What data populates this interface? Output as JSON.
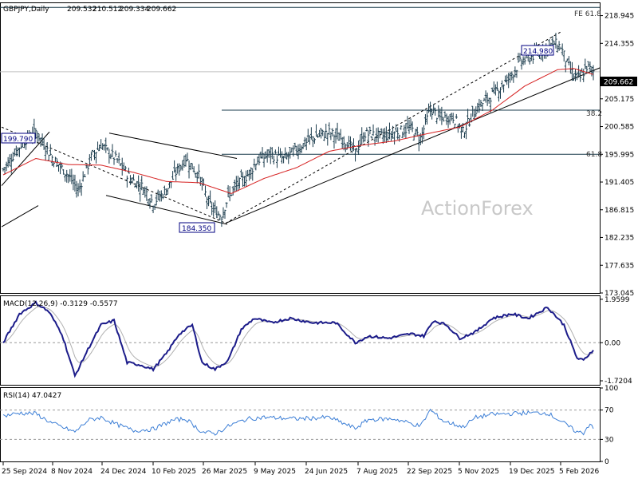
{
  "chart_data": [
    {
      "type": "candlestick",
      "title": "GBPJPY,Daily",
      "ohlc": [
        "209.532",
        "210.512",
        "209.334",
        "209.662"
      ],
      "last_price": "209.662",
      "watermark": "ActionForex",
      "y_ticks": [
        "218.945",
        "214.355",
        "209.662",
        "205.175",
        "200.585",
        "195.995",
        "191.405",
        "186.815",
        "182.235",
        "177.635",
        "173.045"
      ],
      "y_range": [
        173.045,
        221.0
      ],
      "annotations": {
        "high": "214.980",
        "prior_high": "199.790",
        "low": "184.350",
        "fe": "FE 61.8",
        "fib382": "38.2",
        "fib618": "61.8"
      },
      "levels": {
        "fe": 220.3,
        "fib382": 203.3,
        "fib618": 196.0
      },
      "x_ticks": [
        "25 Sep 2024",
        "8 Nov 2024",
        "24 Dec 2024",
        "10 Feb 2025",
        "26 Mar 2025",
        "9 May 2025",
        "24 Jun 2025",
        "7 Aug 2025",
        "22 Sep 2025",
        "5 Nov 2025",
        "19 Dec 2025",
        "5 Feb 2026"
      ],
      "anchors": [
        [
          0,
          193.5
        ],
        [
          12,
          198.0
        ],
        [
          20,
          199.8
        ],
        [
          30,
          195.5
        ],
        [
          40,
          192.5
        ],
        [
          46,
          190.0
        ],
        [
          54,
          195.5
        ],
        [
          60,
          197.6
        ],
        [
          70,
          195.0
        ],
        [
          78,
          192.0
        ],
        [
          86,
          190.5
        ],
        [
          92,
          188.0
        ],
        [
          100,
          190.0
        ],
        [
          106,
          193.0
        ],
        [
          112,
          195.3
        ],
        [
          120,
          192.5
        ],
        [
          126,
          188.0
        ],
        [
          130,
          186.5
        ],
        [
          134,
          185.8
        ],
        [
          138,
          189.0
        ],
        [
          144,
          191.0
        ],
        [
          150,
          192.5
        ],
        [
          156,
          195.0
        ],
        [
          164,
          196.0
        ],
        [
          172,
          195.2
        ],
        [
          180,
          196.8
        ],
        [
          190,
          198.8
        ],
        [
          200,
          199.6
        ],
        [
          210,
          198.2
        ],
        [
          216,
          196.3
        ],
        [
          222,
          199.4
        ],
        [
          232,
          199.0
        ],
        [
          240,
          199.6
        ],
        [
          250,
          200.3
        ],
        [
          256,
          198.6
        ],
        [
          262,
          203.5
        ],
        [
          268,
          202.0
        ],
        [
          276,
          202.2
        ],
        [
          282,
          199.7
        ],
        [
          290,
          203.5
        ],
        [
          300,
          205.8
        ],
        [
          310,
          208.5
        ],
        [
          318,
          211.5
        ],
        [
          326,
          212.4
        ],
        [
          334,
          213.7
        ],
        [
          338,
          214.4
        ],
        [
          342,
          213.8
        ],
        [
          346,
          211.0
        ],
        [
          350,
          209.0
        ],
        [
          354,
          208.6
        ],
        [
          358,
          210.5
        ],
        [
          362,
          209.7
        ]
      ],
      "ma_anchors": [
        [
          0,
          192.6
        ],
        [
          20,
          195.3
        ],
        [
          40,
          194.3
        ],
        [
          60,
          194.2
        ],
        [
          80,
          193.0
        ],
        [
          100,
          191.5
        ],
        [
          120,
          191.3
        ],
        [
          140,
          189.5
        ],
        [
          160,
          192.0
        ],
        [
          180,
          193.8
        ],
        [
          200,
          196.5
        ],
        [
          220,
          197.5
        ],
        [
          240,
          198.2
        ],
        [
          260,
          199.4
        ],
        [
          280,
          200.5
        ],
        [
          300,
          203.3
        ],
        [
          320,
          207.3
        ],
        [
          340,
          210.0
        ],
        [
          350,
          210.2
        ],
        [
          362,
          209.2
        ]
      ]
    },
    {
      "type": "line",
      "title": "MACD(12,26,9) -0.3129 -0.5577",
      "y_ticks": [
        "1.9599",
        "0.00",
        "-1.7204"
      ],
      "y_range": [
        -1.9,
        2.1
      ],
      "anchors": [
        [
          0,
          0.0
        ],
        [
          10,
          1.3
        ],
        [
          20,
          1.8
        ],
        [
          28,
          1.4
        ],
        [
          36,
          0.4
        ],
        [
          44,
          -1.5
        ],
        [
          52,
          -0.3
        ],
        [
          60,
          0.8
        ],
        [
          68,
          1.0
        ],
        [
          76,
          -0.9
        ],
        [
          84,
          -1.0
        ],
        [
          92,
          -1.2
        ],
        [
          100,
          -0.5
        ],
        [
          108,
          0.4
        ],
        [
          116,
          0.8
        ],
        [
          122,
          -0.9
        ],
        [
          130,
          -1.2
        ],
        [
          138,
          -0.8
        ],
        [
          146,
          0.6
        ],
        [
          154,
          1.1
        ],
        [
          164,
          0.9
        ],
        [
          176,
          1.1
        ],
        [
          190,
          0.9
        ],
        [
          204,
          0.9
        ],
        [
          216,
          0.0
        ],
        [
          224,
          0.3
        ],
        [
          236,
          0.2
        ],
        [
          250,
          0.4
        ],
        [
          258,
          0.3
        ],
        [
          264,
          1.0
        ],
        [
          272,
          0.8
        ],
        [
          280,
          0.2
        ],
        [
          290,
          0.5
        ],
        [
          300,
          1.1
        ],
        [
          312,
          1.3
        ],
        [
          322,
          1.1
        ],
        [
          334,
          1.6
        ],
        [
          344,
          0.8
        ],
        [
          352,
          -0.7
        ],
        [
          356,
          -0.8
        ],
        [
          362,
          -0.3
        ]
      ]
    },
    {
      "type": "line",
      "title": "RSI(14) 47.0427",
      "y_ticks": [
        "100",
        "70",
        "30",
        "0"
      ],
      "y_range": [
        0,
        100
      ],
      "anchors": [
        [
          0,
          62
        ],
        [
          10,
          66
        ],
        [
          20,
          65
        ],
        [
          30,
          52
        ],
        [
          44,
          40
        ],
        [
          52,
          56
        ],
        [
          60,
          60
        ],
        [
          70,
          50
        ],
        [
          80,
          42
        ],
        [
          92,
          44
        ],
        [
          104,
          56
        ],
        [
          112,
          58
        ],
        [
          122,
          40
        ],
        [
          130,
          38
        ],
        [
          140,
          50
        ],
        [
          150,
          58
        ],
        [
          160,
          60
        ],
        [
          180,
          58
        ],
        [
          200,
          60
        ],
        [
          216,
          45
        ],
        [
          224,
          57
        ],
        [
          240,
          58
        ],
        [
          256,
          48
        ],
        [
          262,
          70
        ],
        [
          270,
          55
        ],
        [
          282,
          47
        ],
        [
          290,
          60
        ],
        [
          300,
          64
        ],
        [
          320,
          66
        ],
        [
          334,
          66
        ],
        [
          344,
          52
        ],
        [
          352,
          40
        ],
        [
          356,
          39
        ],
        [
          360,
          52
        ],
        [
          362,
          47
        ]
      ]
    }
  ]
}
